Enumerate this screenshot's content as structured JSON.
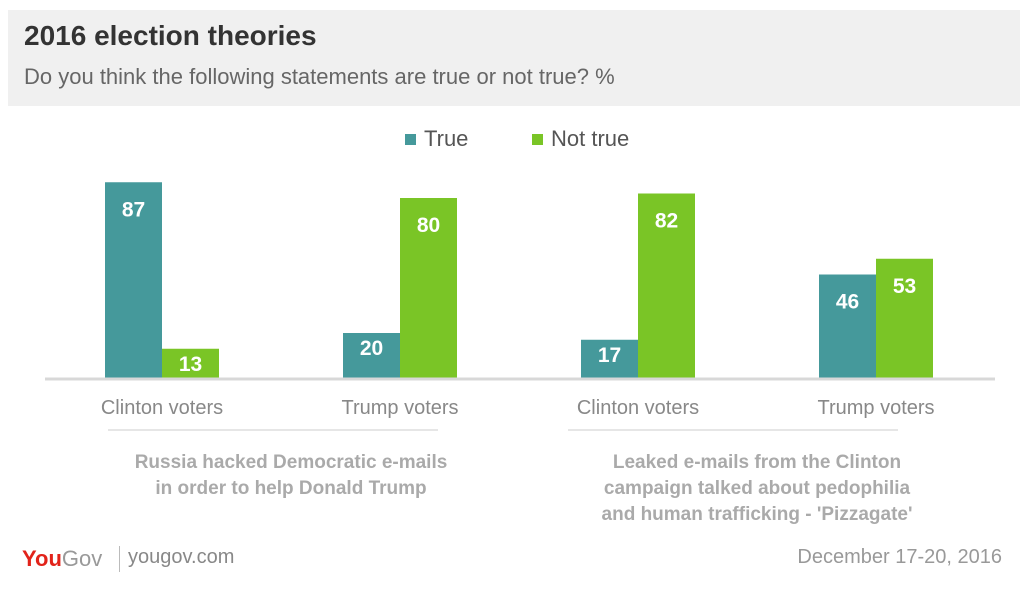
{
  "header": {
    "title": "2016 election theories",
    "subtitle": "Do you think the following statements are true or not true? %"
  },
  "legend": [
    {
      "label": "True",
      "color": "#45999b"
    },
    {
      "label": "Not true",
      "color": "#7ac526"
    }
  ],
  "chart_data": {
    "type": "bar",
    "title": "2016 election theories",
    "subtitle": "Do you think the following statements are true or not true? %",
    "categories": [
      "Clinton voters",
      "Trump voters",
      "Clinton voters",
      "Trump voters"
    ],
    "groups": [
      {
        "label": "Russia hacked Democratic e-mails in order to help Donald Trump",
        "categories": [
          0,
          1
        ]
      },
      {
        "label": "Leaked e-mails from the Clinton campaign talked about pedophilia and human trafficking - 'Pizzagate'",
        "categories": [
          2,
          3
        ]
      }
    ],
    "series": [
      {
        "name": "True",
        "color": "#45999b",
        "values": [
          87,
          20,
          17,
          46
        ]
      },
      {
        "name": "Not true",
        "color": "#7ac526",
        "values": [
          13,
          80,
          82,
          53
        ]
      }
    ],
    "ylim": [
      0,
      100
    ],
    "grid": false,
    "legend_position": "top-center"
  },
  "footer": {
    "brand_you": "You",
    "brand_gov": "Gov",
    "url": "yougov.com",
    "date": "December 17-20, 2016"
  }
}
